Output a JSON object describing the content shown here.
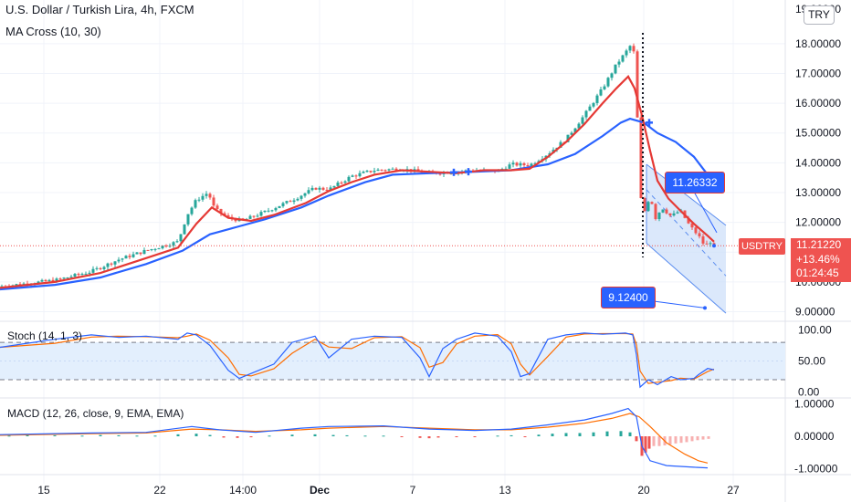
{
  "header": {
    "title": "U.S. Dollar / Turkish Lira, 4h, FXCM",
    "ma_label": "MA Cross (10, 30)"
  },
  "currency_button": "TRY",
  "colors": {
    "up": "#26a69a",
    "down": "#ef5350",
    "ma_fast": "#e53935",
    "ma_slow": "#2962ff",
    "stoch_k": "#2962ff",
    "stoch_d": "#ff6d00",
    "macd": "#2962ff",
    "signal": "#ff6d00",
    "channel_fill": "#cfe0fa",
    "callout": "#2962ff",
    "price_tag": "#ef5350"
  },
  "price_tag": {
    "symbol": "USDTRY",
    "price": "11.21220",
    "change": "+13.46%",
    "countdown": "01:24:45"
  },
  "callouts": {
    "upper": "11.26332",
    "lower": "9.12400"
  },
  "stoch": {
    "label": "Stoch (14, 1, 3)"
  },
  "macd": {
    "label": "MACD (12, 26, close, 9, EMA, EMA)"
  },
  "chart_data": {
    "type": "candlestick",
    "title": "U.S. Dollar / Turkish Lira, 4h, FXCM",
    "price_axis": {
      "range": [
        8.8,
        19.1
      ],
      "tick_labels": [
        "18.00000",
        "17.00000",
        "16.00000",
        "15.00000",
        "14.00000",
        "13.00000",
        "12.00000",
        "10.00000",
        "9.00000"
      ],
      "partial_top_label": "19.00000"
    },
    "stoch_axis": {
      "range": [
        -5,
        108
      ],
      "tick_labels": [
        "100.00",
        "50.00",
        "0.00"
      ],
      "band": [
        20,
        80
      ]
    },
    "macd_axis": {
      "range": [
        -1.12,
        1.12
      ],
      "tick_labels": [
        "1.00000",
        "0.00000",
        "-1.00000"
      ]
    },
    "x_axis": {
      "labels": [
        "15",
        "22",
        "14:00",
        "Dec",
        "7",
        "13",
        "20",
        "27"
      ],
      "bold_labels": [
        "Dec"
      ]
    },
    "price_anchors": [
      [
        0,
        9.85
      ],
      [
        60,
        10.05
      ],
      [
        100,
        10.35
      ],
      [
        130,
        10.75
      ],
      [
        160,
        11.05
      ],
      [
        195,
        11.35
      ],
      [
        205,
        12.25
      ],
      [
        215,
        12.75
      ],
      [
        228,
        13.0
      ],
      [
        235,
        12.45
      ],
      [
        250,
        12.15
      ],
      [
        265,
        12.05
      ],
      [
        290,
        12.35
      ],
      [
        320,
        12.75
      ],
      [
        345,
        13.15
      ],
      [
        360,
        13.1
      ],
      [
        385,
        13.55
      ],
      [
        410,
        13.75
      ],
      [
        440,
        13.8
      ],
      [
        470,
        13.65
      ],
      [
        500,
        13.7
      ],
      [
        520,
        13.75
      ],
      [
        545,
        13.72
      ],
      [
        560,
        13.95
      ],
      [
        580,
        13.92
      ],
      [
        600,
        14.3
      ],
      [
        620,
        14.8
      ],
      [
        640,
        15.6
      ],
      [
        660,
        16.5
      ],
      [
        675,
        17.3
      ],
      [
        685,
        17.7
      ],
      [
        693,
        18.05
      ],
      [
        697,
        16.7
      ],
      [
        700,
        13.1
      ],
      [
        705,
        12.3
      ],
      [
        712,
        12.9
      ],
      [
        718,
        12.15
      ],
      [
        725,
        12.5
      ],
      [
        735,
        12.2
      ],
      [
        745,
        12.4
      ],
      [
        755,
        11.9
      ],
      [
        765,
        11.55
      ],
      [
        772,
        11.2
      ],
      [
        778,
        11.35
      ],
      [
        782,
        11.21
      ]
    ],
    "ma_fast_points": [
      [
        0,
        9.8
      ],
      [
        60,
        10.0
      ],
      [
        110,
        10.3
      ],
      [
        160,
        10.8
      ],
      [
        195,
        11.15
      ],
      [
        215,
        11.95
      ],
      [
        232,
        12.5
      ],
      [
        250,
        12.15
      ],
      [
        275,
        12.05
      ],
      [
        300,
        12.25
      ],
      [
        335,
        12.65
      ],
      [
        360,
        13.05
      ],
      [
        385,
        13.35
      ],
      [
        410,
        13.6
      ],
      [
        440,
        13.75
      ],
      [
        470,
        13.7
      ],
      [
        500,
        13.65
      ],
      [
        530,
        13.75
      ],
      [
        560,
        13.75
      ],
      [
        580,
        13.8
      ],
      [
        600,
        14.2
      ],
      [
        620,
        14.7
      ],
      [
        640,
        15.3
      ],
      [
        660,
        16.0
      ],
      [
        675,
        16.5
      ],
      [
        688,
        16.9
      ],
      [
        695,
        16.5
      ],
      [
        703,
        15.6
      ],
      [
        712,
        14.4
      ],
      [
        720,
        13.4
      ],
      [
        732,
        12.8
      ],
      [
        745,
        12.4
      ],
      [
        760,
        11.95
      ],
      [
        775,
        11.55
      ],
      [
        782,
        11.35
      ]
    ],
    "ma_slow_points": [
      [
        0,
        9.75
      ],
      [
        60,
        9.9
      ],
      [
        110,
        10.15
      ],
      [
        160,
        10.6
      ],
      [
        200,
        11.05
      ],
      [
        230,
        11.6
      ],
      [
        260,
        11.85
      ],
      [
        290,
        12.1
      ],
      [
        330,
        12.5
      ],
      [
        360,
        12.9
      ],
      [
        400,
        13.35
      ],
      [
        430,
        13.6
      ],
      [
        470,
        13.65
      ],
      [
        520,
        13.7
      ],
      [
        560,
        13.75
      ],
      [
        600,
        13.95
      ],
      [
        630,
        14.3
      ],
      [
        660,
        14.9
      ],
      [
        680,
        15.35
      ],
      [
        690,
        15.48
      ],
      [
        705,
        15.35
      ],
      [
        720,
        15.0
      ],
      [
        740,
        14.7
      ],
      [
        760,
        14.2
      ],
      [
        775,
        13.6
      ],
      [
        785,
        13.1
      ]
    ],
    "stoch_points": [
      [
        0,
        72
      ],
      [
        60,
        85
      ],
      [
        100,
        92
      ],
      [
        130,
        88
      ],
      [
        160,
        90
      ],
      [
        195,
        85
      ],
      [
        205,
        95
      ],
      [
        215,
        92
      ],
      [
        230,
        75
      ],
      [
        250,
        35
      ],
      [
        262,
        22
      ],
      [
        275,
        30
      ],
      [
        300,
        45
      ],
      [
        320,
        80
      ],
      [
        345,
        90
      ],
      [
        360,
        55
      ],
      [
        385,
        85
      ],
      [
        410,
        90
      ],
      [
        440,
        88
      ],
      [
        460,
        55
      ],
      [
        470,
        25
      ],
      [
        485,
        70
      ],
      [
        500,
        85
      ],
      [
        520,
        95
      ],
      [
        545,
        90
      ],
      [
        560,
        65
      ],
      [
        570,
        25
      ],
      [
        580,
        30
      ],
      [
        600,
        85
      ],
      [
        620,
        92
      ],
      [
        640,
        95
      ],
      [
        660,
        93
      ],
      [
        685,
        95
      ],
      [
        693,
        92
      ],
      [
        697,
        60
      ],
      [
        701,
        8
      ],
      [
        710,
        20
      ],
      [
        720,
        12
      ],
      [
        735,
        25
      ],
      [
        745,
        20
      ],
      [
        760,
        22
      ],
      [
        765,
        28
      ],
      [
        775,
        38
      ],
      [
        782,
        36
      ]
    ],
    "macd_points": [
      [
        0,
        0.05
      ],
      [
        100,
        0.1
      ],
      [
        160,
        0.12
      ],
      [
        210,
        0.3
      ],
      [
        240,
        0.2
      ],
      [
        280,
        0.12
      ],
      [
        330,
        0.25
      ],
      [
        360,
        0.3
      ],
      [
        420,
        0.32
      ],
      [
        470,
        0.22
      ],
      [
        520,
        0.18
      ],
      [
        560,
        0.22
      ],
      [
        600,
        0.35
      ],
      [
        640,
        0.5
      ],
      [
        670,
        0.7
      ],
      [
        688,
        0.85
      ],
      [
        697,
        0.6
      ],
      [
        703,
        -0.3
      ],
      [
        712,
        -0.75
      ],
      [
        730,
        -0.9
      ],
      [
        760,
        -0.95
      ],
      [
        775,
        -0.97
      ]
    ],
    "signal_points": [
      [
        0,
        0.03
      ],
      [
        100,
        0.08
      ],
      [
        160,
        0.1
      ],
      [
        210,
        0.22
      ],
      [
        240,
        0.2
      ],
      [
        280,
        0.15
      ],
      [
        330,
        0.2
      ],
      [
        360,
        0.25
      ],
      [
        420,
        0.3
      ],
      [
        470,
        0.25
      ],
      [
        520,
        0.2
      ],
      [
        560,
        0.2
      ],
      [
        600,
        0.28
      ],
      [
        640,
        0.4
      ],
      [
        670,
        0.55
      ],
      [
        690,
        0.7
      ],
      [
        700,
        0.6
      ],
      [
        712,
        0.3
      ],
      [
        730,
        -0.2
      ],
      [
        750,
        -0.55
      ],
      [
        765,
        -0.75
      ],
      [
        775,
        -0.82
      ]
    ],
    "macd_histogram_bars": [
      [
        10,
        0.02
      ],
      [
        30,
        0.03
      ],
      [
        60,
        0.03
      ],
      [
        90,
        0.02
      ],
      [
        110,
        0.04
      ],
      [
        130,
        0.03
      ],
      [
        150,
        0.02
      ],
      [
        170,
        0.02
      ],
      [
        195,
        0.06
      ],
      [
        215,
        0.08
      ],
      [
        230,
        0.04
      ],
      [
        245,
        -0.04
      ],
      [
        260,
        -0.05
      ],
      [
        275,
        -0.03
      ],
      [
        295,
        0.02
      ],
      [
        320,
        0.05
      ],
      [
        345,
        0.06
      ],
      [
        365,
        0.04
      ],
      [
        380,
        0.03
      ],
      [
        400,
        0.02
      ],
      [
        420,
        0.02
      ],
      [
        440,
        -0.02
      ],
      [
        460,
        -0.05
      ],
      [
        470,
        -0.06
      ],
      [
        480,
        -0.04
      ],
      [
        500,
        -0.02
      ],
      [
        520,
        -0.02
      ],
      [
        545,
        0.02
      ],
      [
        560,
        0.03
      ],
      [
        575,
        -0.02
      ],
      [
        590,
        0.05
      ],
      [
        605,
        0.08
      ],
      [
        620,
        0.1
      ],
      [
        635,
        0.1
      ],
      [
        650,
        0.12
      ],
      [
        665,
        0.15
      ],
      [
        680,
        0.16
      ],
      [
        690,
        0.12
      ],
      [
        697,
        -0.15
      ],
      [
        703,
        -0.6
      ],
      [
        707,
        -0.5
      ],
      [
        711,
        -0.38
      ],
      [
        716,
        -0.3
      ],
      [
        722,
        -0.3
      ],
      [
        728,
        -0.28
      ],
      [
        734,
        -0.25
      ],
      [
        740,
        -0.22
      ],
      [
        746,
        -0.2
      ],
      [
        752,
        -0.18
      ],
      [
        758,
        -0.15
      ],
      [
        764,
        -0.12
      ],
      [
        770,
        -0.1
      ],
      [
        776,
        -0.08
      ]
    ],
    "channel": {
      "top_left": [
        708,
        13.95
      ],
      "top_right": [
        795,
        11.9
      ],
      "mid_left": [
        708,
        13.1
      ],
      "mid_right": [
        795,
        10.2
      ],
      "bottom_left": [
        708,
        11.3
      ],
      "bottom_right": [
        795,
        8.95
      ]
    },
    "last_price": 11.2122,
    "callout_values": [
      11.26332,
      9.124
    ]
  }
}
